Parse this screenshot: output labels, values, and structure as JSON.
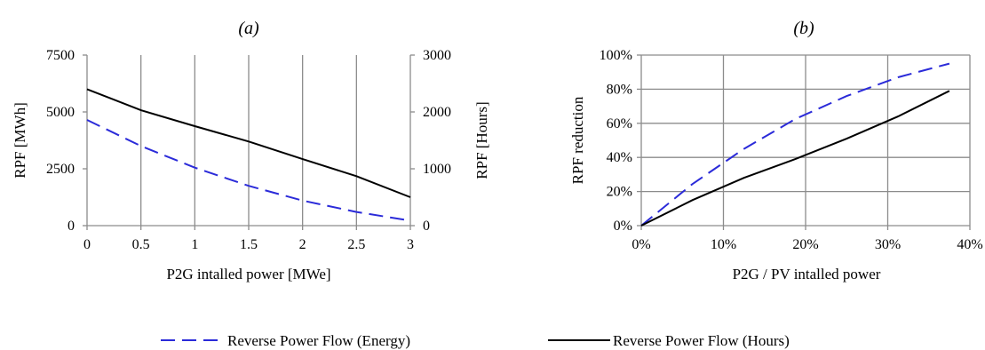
{
  "chart_data": [
    {
      "type": "line",
      "title": "(a)",
      "xlabel": "P2G intalled power [MWe]",
      "ylabel": "RPF [MWh]",
      "y2label": "RPF [Hours]",
      "xlim": [
        0,
        3
      ],
      "ylim": [
        0,
        7500
      ],
      "y2lim": [
        0,
        3000
      ],
      "xticks": [
        "0",
        "0.5",
        "1",
        "1.5",
        "2",
        "2.5",
        "3"
      ],
      "yticks": [
        "0",
        "2500",
        "5000",
        "7500"
      ],
      "y2ticks": [
        "0",
        "1000",
        "2000",
        "3000"
      ],
      "grid": "vertical",
      "series": [
        {
          "name": "Reverse Power Flow (Energy)",
          "axis": "left",
          "color": "#2b2bd9",
          "dash": true,
          "x": [
            0,
            0.5,
            1,
            1.5,
            2,
            2.5,
            3
          ],
          "y": [
            4650,
            3500,
            2550,
            1750,
            1100,
            600,
            220
          ]
        },
        {
          "name": "Reverse Power Flow (Hours)",
          "axis": "right",
          "color": "#000000",
          "dash": false,
          "x": [
            0,
            0.5,
            1,
            1.5,
            2,
            2.5,
            3
          ],
          "y": [
            2400,
            2030,
            1750,
            1480,
            1170,
            870,
            500
          ]
        }
      ]
    },
    {
      "type": "line",
      "title": "(b)",
      "xlabel": "P2G  / PV intalled power",
      "ylabel": "RPF reduction",
      "xlim": [
        0,
        40
      ],
      "ylim": [
        0,
        100
      ],
      "xticks": [
        "0%",
        "10%",
        "20%",
        "30%",
        "40%"
      ],
      "yticks": [
        "0%",
        "20%",
        "40%",
        "60%",
        "80%",
        "100%"
      ],
      "grid": "both",
      "series": [
        {
          "name": "Reverse Power Flow (Energy)",
          "color": "#2b2bd9",
          "dash": true,
          "x": [
            0,
            6.25,
            12.5,
            18.75,
            25,
            31.25,
            37.5
          ],
          "y": [
            0,
            24.5,
            45,
            62.5,
            76,
            87,
            95
          ]
        },
        {
          "name": "Reverse Power Flow (Hours)",
          "color": "#000000",
          "dash": false,
          "x": [
            0,
            6.25,
            12.5,
            18.75,
            25,
            31.25,
            37.5
          ],
          "y": [
            0,
            15,
            28,
            39,
            51,
            64,
            79
          ]
        }
      ]
    }
  ],
  "legend": {
    "placement": "bottom",
    "items": [
      {
        "label": "Reverse Power Flow (Energy)",
        "color": "#2b2bd9",
        "dash": true
      },
      {
        "label": "Reverse Power Flow (Hours)",
        "color": "#000000",
        "dash": false
      }
    ]
  }
}
